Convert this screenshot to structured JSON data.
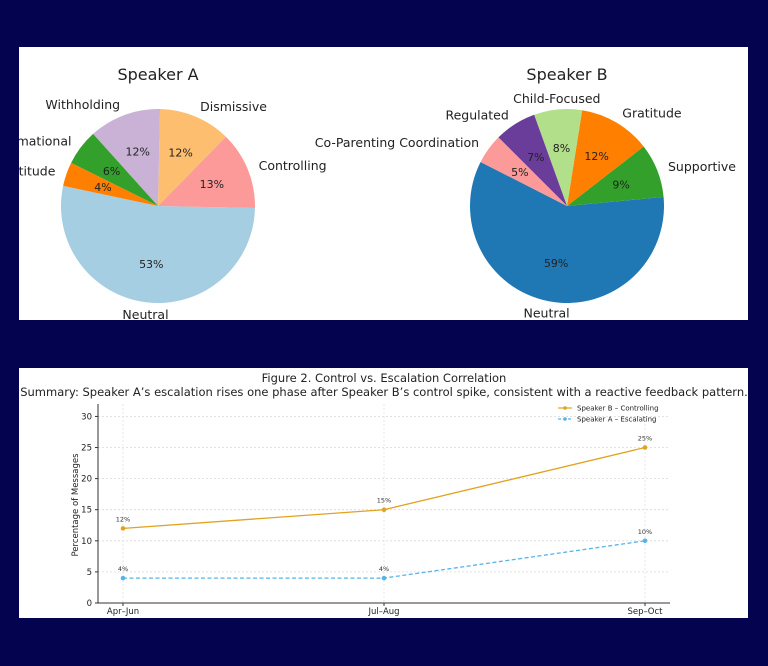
{
  "chart_data": [
    {
      "type": "pie",
      "title": "Speaker A",
      "slices": [
        {
          "label": "Neutral",
          "pct_label": "53%",
          "value": 53,
          "color": "#a6cee3"
        },
        {
          "label": "Controlling",
          "pct_label": "13%",
          "value": 13,
          "color": "#fb9a99"
        },
        {
          "label": "Dismissive",
          "pct_label": "12%",
          "value": 12,
          "color": "#fdbf6f"
        },
        {
          "label": "Withholding",
          "pct_label": "12%",
          "value": 12,
          "color": "#cab2d6"
        },
        {
          "label": "Informational",
          "pct_label": "6%",
          "value": 6,
          "color": "#33a02c"
        },
        {
          "label": "Gratitude",
          "pct_label": "4%",
          "value": 4,
          "color": "#ff7f00"
        }
      ]
    },
    {
      "type": "pie",
      "title": "Speaker B",
      "slices": [
        {
          "label": "Neutral",
          "pct_label": "59%",
          "value": 59,
          "color": "#1f78b4"
        },
        {
          "label": "Supportive",
          "pct_label": "9%",
          "value": 9,
          "color": "#33a02c"
        },
        {
          "label": "Gratitude",
          "pct_label": "12%",
          "value": 12,
          "color": "#ff7f00"
        },
        {
          "label": "Child-Focused",
          "pct_label": "8%",
          "value": 8,
          "color": "#b2df8a"
        },
        {
          "label": "Regulated",
          "pct_label": "7%",
          "value": 7,
          "color": "#6a3d9a"
        },
        {
          "label": "Co-Parenting Coordination",
          "pct_label": "5%",
          "value": 5,
          "color": "#fb9a99"
        }
      ]
    },
    {
      "type": "line",
      "title": "Figure 2. Control vs. Escalation Correlation",
      "subtitle": "Summary: Speaker A’s escalation rises one phase after Speaker B’s control spike, consistent with a reactive feedback pattern.",
      "xlabel": "",
      "ylabel": "Percentage of Messages",
      "categories": [
        "Apr–Jun",
        "Jul–Aug",
        "Sep–Oct"
      ],
      "ylim": [
        0,
        32
      ],
      "yticks": [
        0,
        5,
        10,
        15,
        20,
        25,
        30
      ],
      "grid": true,
      "legend_position": "top-right",
      "series": [
        {
          "name": "Speaker B – Controlling",
          "values": [
            12,
            15,
            25
          ],
          "labels": [
            "12%",
            "15%",
            "25%"
          ],
          "color": "#e1a21f",
          "dashed": false
        },
        {
          "name": "Speaker A – Escalating",
          "values": [
            4,
            4,
            10
          ],
          "labels": [
            "4%",
            "4%",
            "10%"
          ],
          "color": "#56b4e9",
          "dashed": true
        }
      ]
    }
  ]
}
